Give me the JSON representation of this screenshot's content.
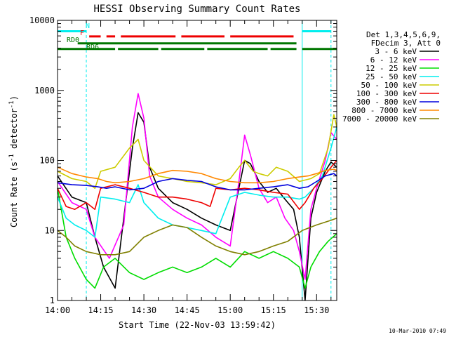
{
  "chart_data": {
    "type": "line",
    "title": "HESSI Observing Summary Count Rates",
    "xlabel": "Start Time (22-Nov-03 13:59:42)",
    "ylabel_prefix": "Count Rate (s",
    "ylabel_sup1": "-1",
    "ylabel_mid": " detector",
    "ylabel_sup2": "-1",
    "ylabel_suffix": ")",
    "y_scale": "log",
    "ylim": [
      1,
      10000
    ],
    "xlim": [
      "14:00",
      "15:37"
    ],
    "x_ticks": [
      "14:00",
      "14:15",
      "14:30",
      "14:45",
      "15:00",
      "15:15",
      "15:30"
    ],
    "y_ticks": [
      "1",
      "10",
      "100",
      "1000",
      "10000"
    ],
    "footer": "10-Mar-2010 07:49",
    "legend_header": [
      "Det 1,3,4,5,6,9,",
      "FDecim 3, Att 0"
    ],
    "flags": {
      "n_label": "N",
      "f_label": "F",
      "rd0_label": "RD0",
      "rd6_label": "RD6"
    },
    "series": [
      {
        "name": "3 - 6 keV",
        "color": "#000000",
        "points": [
          [
            "14:00",
            60
          ],
          [
            "14:05",
            30
          ],
          [
            "14:10",
            25
          ],
          [
            "14:13",
            8
          ],
          [
            "14:16",
            3
          ],
          [
            "14:20",
            1.5
          ],
          [
            "14:23",
            15
          ],
          [
            "14:26",
            150
          ],
          [
            "14:28",
            480
          ],
          [
            "14:30",
            350
          ],
          [
            "14:32",
            80
          ],
          [
            "14:35",
            40
          ],
          [
            "14:40",
            25
          ],
          [
            "14:45",
            20
          ],
          [
            "14:50",
            15
          ],
          [
            "14:55",
            12
          ],
          [
            "15:00",
            10
          ],
          [
            "15:03",
            40
          ],
          [
            "15:05",
            100
          ],
          [
            "15:07",
            90
          ],
          [
            "15:10",
            50
          ],
          [
            "15:13",
            35
          ],
          [
            "15:16",
            40
          ],
          [
            "15:19",
            28
          ],
          [
            "15:22",
            20
          ],
          [
            "15:24",
            8
          ],
          [
            "15:26",
            1
          ],
          [
            "15:28",
            15
          ],
          [
            "15:30",
            35
          ],
          [
            "15:33",
            70
          ],
          [
            "15:35",
            95
          ],
          [
            "15:37",
            80
          ]
        ]
      },
      {
        "name": "6 - 12 keV",
        "color": "#ff00ff",
        "points": [
          [
            "14:00",
            50
          ],
          [
            "14:05",
            25
          ],
          [
            "14:10",
            20
          ],
          [
            "14:13",
            8
          ],
          [
            "14:18",
            4
          ],
          [
            "14:23",
            12
          ],
          [
            "14:26",
            300
          ],
          [
            "14:28",
            900
          ],
          [
            "14:30",
            400
          ],
          [
            "14:32",
            60
          ],
          [
            "14:35",
            30
          ],
          [
            "14:40",
            20
          ],
          [
            "14:45",
            15
          ],
          [
            "14:50",
            12
          ],
          [
            "14:55",
            8
          ],
          [
            "15:00",
            6
          ],
          [
            "15:03",
            50
          ],
          [
            "15:05",
            230
          ],
          [
            "15:07",
            120
          ],
          [
            "15:10",
            40
          ],
          [
            "15:13",
            25
          ],
          [
            "15:16",
            30
          ],
          [
            "15:19",
            15
          ],
          [
            "15:22",
            10
          ],
          [
            "15:24",
            5
          ],
          [
            "15:26",
            2
          ],
          [
            "15:28",
            20
          ],
          [
            "15:30",
            40
          ],
          [
            "15:33",
            100
          ],
          [
            "15:35",
            250
          ],
          [
            "15:37",
            200
          ]
        ]
      },
      {
        "name": "12 - 25 keV",
        "color": "#00dd00",
        "points": [
          [
            "14:00",
            40
          ],
          [
            "14:03",
            8
          ],
          [
            "14:06",
            4
          ],
          [
            "14:10",
            2
          ],
          [
            "14:13",
            1.5
          ],
          [
            "14:16",
            3
          ],
          [
            "14:20",
            4
          ],
          [
            "14:25",
            2.5
          ],
          [
            "14:30",
            2
          ],
          [
            "14:35",
            2.5
          ],
          [
            "14:40",
            3
          ],
          [
            "14:45",
            2.5
          ],
          [
            "14:50",
            3
          ],
          [
            "14:55",
            4
          ],
          [
            "15:00",
            3
          ],
          [
            "15:05",
            5
          ],
          [
            "15:10",
            4
          ],
          [
            "15:15",
            5
          ],
          [
            "15:20",
            4
          ],
          [
            "15:24",
            3
          ],
          [
            "15:26",
            1.5
          ],
          [
            "15:28",
            3
          ],
          [
            "15:31",
            5
          ],
          [
            "15:34",
            7
          ],
          [
            "15:37",
            9
          ]
        ]
      },
      {
        "name": "25 - 50 keV",
        "color": "#00eeee",
        "points": [
          [
            "14:00",
            30
          ],
          [
            "14:03",
            15
          ],
          [
            "14:06",
            12
          ],
          [
            "14:10",
            10
          ],
          [
            "14:13",
            8
          ],
          [
            "14:15",
            30
          ],
          [
            "14:20",
            28
          ],
          [
            "14:25",
            25
          ],
          [
            "14:28",
            45
          ],
          [
            "14:30",
            25
          ],
          [
            "14:35",
            15
          ],
          [
            "14:40",
            12
          ],
          [
            "14:45",
            11
          ],
          [
            "14:50",
            10
          ],
          [
            "14:55",
            9
          ],
          [
            "15:00",
            30
          ],
          [
            "15:05",
            35
          ],
          [
            "15:10",
            32
          ],
          [
            "15:15",
            30
          ],
          [
            "15:20",
            30
          ],
          [
            "15:24",
            28
          ],
          [
            "15:26",
            30
          ],
          [
            "15:29",
            40
          ],
          [
            "15:32",
            60
          ],
          [
            "15:35",
            150
          ],
          [
            "15:37",
            300
          ]
        ]
      },
      {
        "name": "50 - 100 keV",
        "color": "#cccc00",
        "points": [
          [
            "14:00",
            70
          ],
          [
            "14:05",
            55
          ],
          [
            "14:10",
            50
          ],
          [
            "14:13",
            40
          ],
          [
            "14:15",
            70
          ],
          [
            "14:20",
            80
          ],
          [
            "14:25",
            150
          ],
          [
            "14:28",
            200
          ],
          [
            "14:30",
            100
          ],
          [
            "14:35",
            60
          ],
          [
            "14:40",
            55
          ],
          [
            "14:45",
            50
          ],
          [
            "14:50",
            48
          ],
          [
            "14:55",
            45
          ],
          [
            "15:00",
            55
          ],
          [
            "15:03",
            80
          ],
          [
            "15:05",
            100
          ],
          [
            "15:08",
            70
          ],
          [
            "15:10",
            65
          ],
          [
            "15:13",
            60
          ],
          [
            "15:16",
            80
          ],
          [
            "15:20",
            70
          ],
          [
            "15:24",
            50
          ],
          [
            "15:28",
            55
          ],
          [
            "15:31",
            65
          ],
          [
            "15:34",
            150
          ],
          [
            "15:36",
            450
          ],
          [
            "15:37",
            300
          ]
        ]
      },
      {
        "name": "100 - 300 keV",
        "color": "#ee0000",
        "points": [
          [
            "14:00",
            40
          ],
          [
            "14:03",
            22
          ],
          [
            "14:06",
            20
          ],
          [
            "14:10",
            25
          ],
          [
            "14:13",
            20
          ],
          [
            "14:15",
            40
          ],
          [
            "14:20",
            45
          ],
          [
            "14:25",
            40
          ],
          [
            "14:30",
            35
          ],
          [
            "14:35",
            30
          ],
          [
            "14:40",
            30
          ],
          [
            "14:45",
            28
          ],
          [
            "14:50",
            25
          ],
          [
            "14:53",
            22
          ],
          [
            "14:55",
            40
          ],
          [
            "15:00",
            38
          ],
          [
            "15:05",
            40
          ],
          [
            "15:10",
            38
          ],
          [
            "15:15",
            35
          ],
          [
            "15:20",
            33
          ],
          [
            "15:24",
            20
          ],
          [
            "15:26",
            25
          ],
          [
            "15:29",
            40
          ],
          [
            "15:32",
            55
          ],
          [
            "15:35",
            80
          ],
          [
            "15:37",
            100
          ]
        ]
      },
      {
        "name": "300 - 800 keV",
        "color": "#0000dd",
        "points": [
          [
            "14:00",
            48
          ],
          [
            "14:05",
            45
          ],
          [
            "14:10",
            44
          ],
          [
            "14:14",
            42
          ],
          [
            "14:17",
            40
          ],
          [
            "14:20",
            42
          ],
          [
            "14:25",
            38
          ],
          [
            "14:30",
            40
          ],
          [
            "14:35",
            50
          ],
          [
            "14:40",
            55
          ],
          [
            "14:45",
            52
          ],
          [
            "14:50",
            50
          ],
          [
            "14:55",
            42
          ],
          [
            "15:00",
            38
          ],
          [
            "15:05",
            38
          ],
          [
            "15:10",
            40
          ],
          [
            "15:15",
            42
          ],
          [
            "15:20",
            45
          ],
          [
            "15:24",
            40
          ],
          [
            "15:27",
            42
          ],
          [
            "15:30",
            50
          ],
          [
            "15:33",
            60
          ],
          [
            "15:36",
            65
          ],
          [
            "15:37",
            60
          ]
        ]
      },
      {
        "name": "800 - 7000 keV",
        "color": "#ff8800",
        "points": [
          [
            "14:00",
            80
          ],
          [
            "14:05",
            65
          ],
          [
            "14:10",
            58
          ],
          [
            "14:14",
            55
          ],
          [
            "14:17",
            50
          ],
          [
            "14:20",
            48
          ],
          [
            "14:25",
            50
          ],
          [
            "14:30",
            55
          ],
          [
            "14:35",
            65
          ],
          [
            "14:40",
            72
          ],
          [
            "14:45",
            70
          ],
          [
            "14:50",
            65
          ],
          [
            "14:55",
            55
          ],
          [
            "15:00",
            50
          ],
          [
            "15:05",
            48
          ],
          [
            "15:10",
            48
          ],
          [
            "15:15",
            50
          ],
          [
            "15:20",
            55
          ],
          [
            "15:24",
            58
          ],
          [
            "15:27",
            60
          ],
          [
            "15:30",
            65
          ],
          [
            "15:33",
            72
          ],
          [
            "15:36",
            75
          ],
          [
            "15:37",
            72
          ]
        ]
      },
      {
        "name": "7000 - 20000 keV",
        "color": "#808000",
        "points": [
          [
            "14:00",
            10
          ],
          [
            "14:03",
            8
          ],
          [
            "14:06",
            6
          ],
          [
            "14:10",
            5
          ],
          [
            "14:15",
            4.5
          ],
          [
            "14:20",
            4.5
          ],
          [
            "14:25",
            5
          ],
          [
            "14:30",
            8
          ],
          [
            "14:35",
            10
          ],
          [
            "14:40",
            12
          ],
          [
            "14:45",
            11
          ],
          [
            "14:50",
            8
          ],
          [
            "14:55",
            6
          ],
          [
            "15:00",
            5
          ],
          [
            "15:05",
            4.5
          ],
          [
            "15:10",
            5
          ],
          [
            "15:15",
            6
          ],
          [
            "15:20",
            7
          ],
          [
            "15:25",
            10
          ],
          [
            "15:30",
            12
          ],
          [
            "15:35",
            14
          ],
          [
            "15:37",
            15
          ]
        ]
      }
    ],
    "flag_segments": [
      {
        "kind": "night",
        "color": "#00eeee",
        "level": 7000,
        "t0": "14:00",
        "t1": "14:10"
      },
      {
        "kind": "night",
        "color": "#00eeee",
        "level": 7000,
        "t0": "15:25",
        "t1": "15:35"
      },
      {
        "kind": "flare",
        "color": "#ee0000",
        "level": 5900,
        "t0": "14:11",
        "t1": "14:15"
      },
      {
        "kind": "flare",
        "color": "#ee0000",
        "level": 5900,
        "t0": "14:17",
        "t1": "14:20"
      },
      {
        "kind": "flare",
        "color": "#ee0000",
        "level": 5900,
        "t0": "14:22",
        "t1": "14:41"
      },
      {
        "kind": "flare",
        "color": "#ee0000",
        "level": 5900,
        "t0": "14:43",
        "t1": "14:58"
      },
      {
        "kind": "flare",
        "color": "#ee0000",
        "level": 5900,
        "t0": "15:00",
        "t1": "15:22"
      },
      {
        "kind": "rd0",
        "color": "#007700",
        "level": 4700,
        "t0": "14:07",
        "t1": "15:23"
      },
      {
        "kind": "rd6",
        "color": "#007700",
        "level": 3900,
        "t0": "14:00",
        "t1": "14:20"
      },
      {
        "kind": "rd6",
        "color": "#007700",
        "level": 3900,
        "t0": "14:21",
        "t1": "14:35"
      },
      {
        "kind": "rd6",
        "color": "#007700",
        "level": 3900,
        "t0": "14:36",
        "t1": "14:51"
      },
      {
        "kind": "rd6",
        "color": "#007700",
        "level": 3900,
        "t0": "14:52",
        "t1": "15:13"
      },
      {
        "kind": "rd6",
        "color": "#007700",
        "level": 3900,
        "t0": "15:14",
        "t1": "15:23"
      },
      {
        "kind": "rd6",
        "color": "#007700",
        "level": 3900,
        "t0": "15:25",
        "t1": "15:37"
      }
    ],
    "solid_vlines": [
      {
        "color": "#00eeee",
        "t": "14:00"
      },
      {
        "color": "#00eeee",
        "t": "15:25"
      }
    ],
    "dashed_vlines": [
      {
        "color": "#00eeee",
        "t": "14:10"
      },
      {
        "color": "#00eeee",
        "t": "15:35"
      }
    ]
  }
}
